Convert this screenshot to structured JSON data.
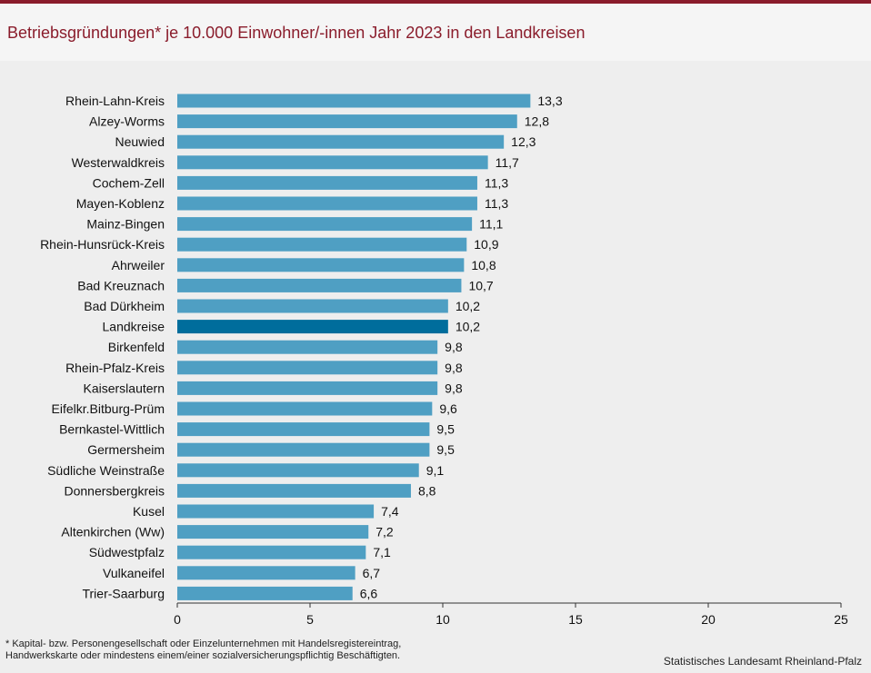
{
  "header": {
    "title": "Betriebsgründungen* je 10.000 Einwohner/-innen Jahr 2023 in den Landkreisen"
  },
  "chart_data": {
    "type": "bar",
    "orientation": "horizontal",
    "title": "Betriebsgründungen* je 10.000 Einwohner/-innen Jahr 2023 in den Landkreisen",
    "xlabel": "",
    "ylabel": "",
    "xlim": [
      0,
      25
    ],
    "xticks": [
      0,
      5,
      10,
      15,
      20,
      25
    ],
    "categories": [
      "Rhein-Lahn-Kreis",
      "Alzey-Worms",
      "Neuwied",
      "Westerwaldkreis",
      "Cochem-Zell",
      "Mayen-Koblenz",
      "Mainz-Bingen",
      "Rhein-Hunsrück-Kreis",
      "Ahrweiler",
      "Bad Kreuznach",
      "Bad Dürkheim",
      "Landkreise",
      "Birkenfeld",
      "Rhein-Pfalz-Kreis",
      "Kaiserslautern",
      "Eifelkr.Bitburg-Prüm",
      "Bernkastel-Wittlich",
      "Germersheim",
      "Südliche Weinstraße",
      "Donnersbergkreis",
      "Kusel",
      "Altenkirchen (Ww)",
      "Südwestpfalz",
      "Vulkaneifel",
      "Trier-Saarburg"
    ],
    "values": [
      13.3,
      12.8,
      12.3,
      11.7,
      11.3,
      11.3,
      11.1,
      10.9,
      10.8,
      10.7,
      10.2,
      10.2,
      9.8,
      9.8,
      9.8,
      9.6,
      9.5,
      9.5,
      9.1,
      8.8,
      7.4,
      7.2,
      7.1,
      6.7,
      6.6
    ],
    "value_labels": [
      "13,3",
      "12,8",
      "12,3",
      "11,7",
      "11,3",
      "11,3",
      "11,1",
      "10,9",
      "10,8",
      "10,7",
      "10,2",
      "10,2",
      "9,8",
      "9,8",
      "9,8",
      "9,6",
      "9,5",
      "9,5",
      "9,1",
      "8,8",
      "7,4",
      "7,2",
      "7,1",
      "6,7",
      "6,6"
    ],
    "highlight_category": "Landkreise",
    "bar_color": "#4f9fc3",
    "highlight_color": "#006d9c",
    "grid": false
  },
  "footnote": {
    "line1": "* Kapital- bzw. Personengesellschaft  oder Einzelunternehmen  mit  Handelsregistereintrag,",
    "line2": "Handwerkskarte  oder  mindestens  einem/einer  sozialversicherungspflichtig  Beschäftigten."
  },
  "source": "Statistisches Landesamt Rheinland-Pfalz"
}
